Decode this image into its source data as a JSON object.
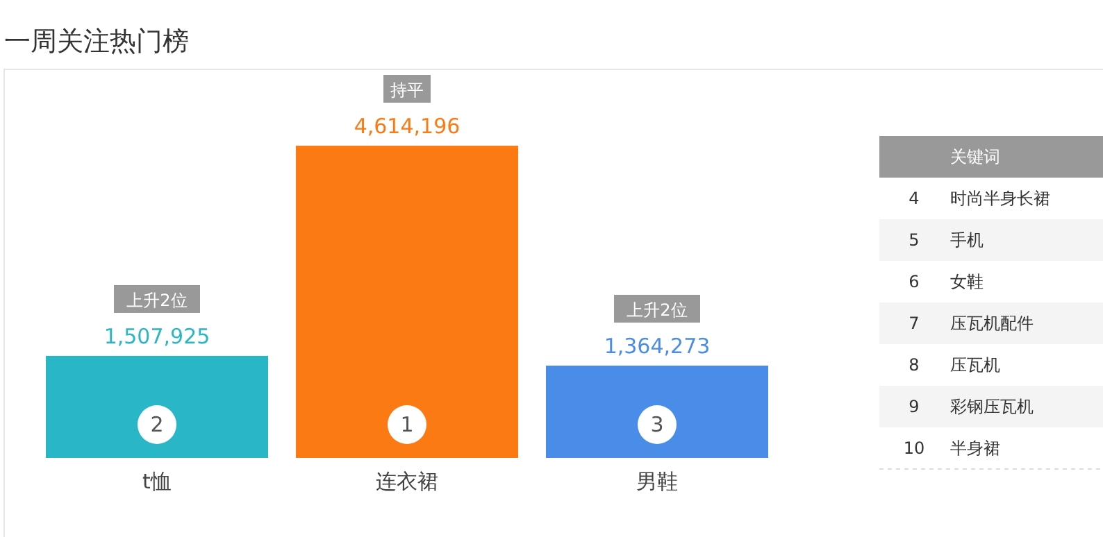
{
  "chart_data": {
    "type": "bar",
    "title": "一周关注热门榜",
    "categories": [
      "t恤",
      "连衣裙",
      "男鞋"
    ],
    "values": [
      1507925,
      4614196,
      1364273
    ],
    "colors": [
      "#29b6c6",
      "#fb7a14",
      "#4a8de8"
    ],
    "value_labels": [
      "1,507,925",
      "4,614,196",
      "1,364,273"
    ],
    "annotations": [
      "上升2位",
      "持平",
      "上升2位",
      "2",
      "1",
      "3",
      "关键词",
      "4 时尚半身长裙",
      "5 手机",
      "6 女鞋",
      "7 压瓦机配件",
      "8 压瓦机",
      "9 彩钢压瓦机",
      "10 半身裙"
    ]
  }
}
